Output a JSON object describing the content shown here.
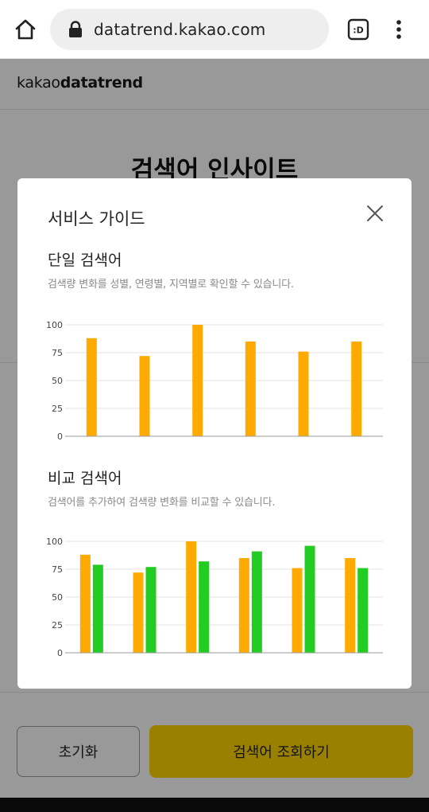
{
  "browser": {
    "url": "datatrend.kakao.com",
    "tab_label": ":D"
  },
  "page": {
    "logo_prefix": "kakao",
    "logo_brand": "datatrend",
    "title": "검색어 인사이트",
    "reset_label": "초기화",
    "search_label": "검색어 조회하기"
  },
  "modal": {
    "title": "서비스 가이드",
    "single": {
      "title": "단일 검색어",
      "description": "검색량 변화를 성별, 연령별, 지역별로 확인할 수 있습니다."
    },
    "compare": {
      "title": "비교 검색어",
      "description": "검색어를 추가하여 검색량 변화를 비교할 수 있습니다."
    }
  },
  "colors": {
    "orange": "#ffaa00",
    "green": "#22cc22",
    "kakao_yellow": "#ffd500"
  },
  "chart_data": [
    {
      "type": "bar",
      "categories": [
        "",
        "",
        "",
        "",
        "",
        ""
      ],
      "series": [
        {
          "values": [
            88,
            72,
            100,
            85,
            76,
            85
          ],
          "color": "#ffaa00"
        }
      ],
      "yticks": [
        0,
        25,
        50,
        75,
        100
      ],
      "ylim": [
        0,
        100
      ],
      "grid": true
    },
    {
      "type": "bar",
      "categories": [
        "",
        "",
        "",
        "",
        "",
        ""
      ],
      "series": [
        {
          "values": [
            88,
            72,
            100,
            85,
            76,
            85
          ],
          "color": "#ffaa00"
        },
        {
          "values": [
            79,
            77,
            82,
            91,
            96,
            76
          ],
          "color": "#22cc22"
        }
      ],
      "yticks": [
        0,
        25,
        50,
        75,
        100
      ],
      "ylim": [
        0,
        100
      ],
      "grid": true
    }
  ]
}
